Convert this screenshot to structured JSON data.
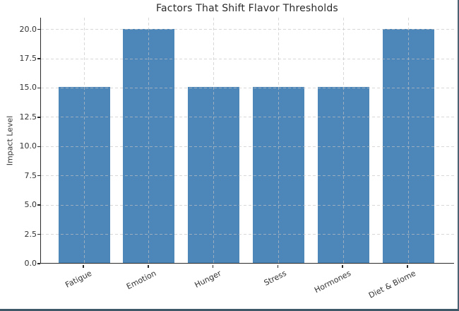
{
  "chart_data": {
    "type": "bar",
    "title": "Factors That Shift Flavor Thresholds",
    "xlabel": "",
    "ylabel": "Impact Level",
    "categories": [
      "Fatigue",
      "Emotion",
      "Hunger",
      "Stress",
      "Hormones",
      "Diet & Biome"
    ],
    "values": [
      15,
      20,
      15,
      15,
      15,
      20
    ],
    "ylim": [
      0,
      21
    ],
    "yticks": [
      0,
      2.5,
      5,
      7.5,
      10,
      12.5,
      15,
      17.5,
      20
    ],
    "ytick_labels": [
      "0.0",
      "2.5",
      "5.0",
      "7.5",
      "10.0",
      "12.5",
      "15.0",
      "17.5",
      "20.0"
    ],
    "grid": "dashed horizontal lines at y ticks and dashed vertical lines at category centers, drawn over bars",
    "legend": "none",
    "colors": {
      "bar": "#4d87ba",
      "grid": "#c9c9c9",
      "spine": "#2b2b2b",
      "text": "#333333",
      "page_border": "#3f5867",
      "background": "#ffffff"
    }
  }
}
